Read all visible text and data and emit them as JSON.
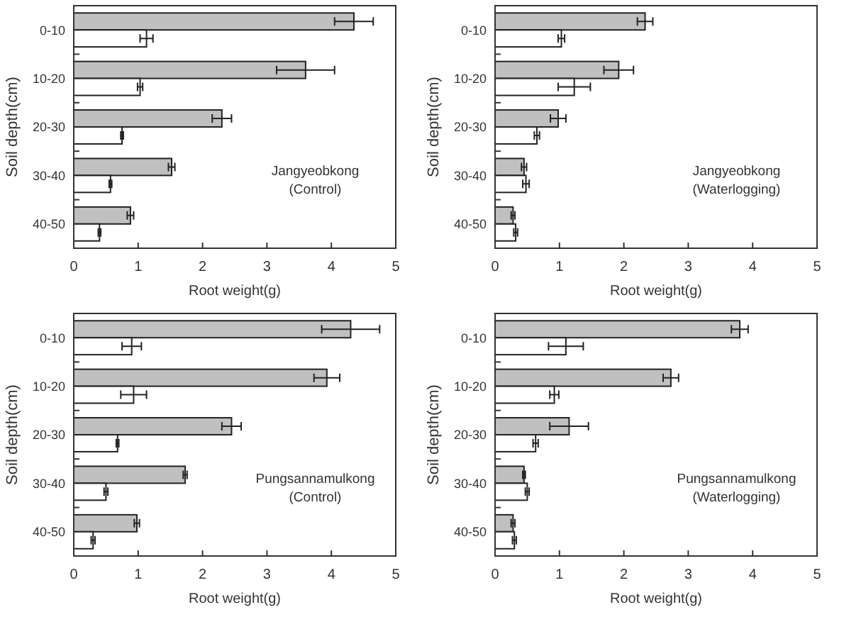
{
  "chart_data": [
    {
      "type": "bar",
      "orientation": "horizontal",
      "categories": [
        "0-10",
        "10-20",
        "20-30",
        "30-40",
        "40-50"
      ],
      "xlabel": "Root weight(g)",
      "ylabel": "Soil depth(cm)",
      "xlim": [
        0,
        5
      ],
      "xticks": [
        0,
        1,
        2,
        3,
        4,
        5
      ],
      "annotations": [
        "Jangyeobkong",
        "(Control)"
      ],
      "series": [
        {
          "color": "#c0c0c0",
          "values": [
            4.35,
            3.6,
            2.3,
            1.52,
            0.88
          ],
          "errors": [
            0.3,
            0.45,
            0.15,
            0.05,
            0.05
          ]
        },
        {
          "color": "#ffffff",
          "values": [
            1.13,
            1.03,
            0.75,
            0.57,
            0.4
          ],
          "errors": [
            0.1,
            0.04,
            0.02,
            0.02,
            0.02
          ]
        }
      ]
    },
    {
      "type": "bar",
      "orientation": "horizontal",
      "categories": [
        "0-10",
        "10-20",
        "20-30",
        "30-40",
        "40-50"
      ],
      "xlabel": "Root weight(g)",
      "ylabel": "Soil depth(cm)",
      "xlim": [
        0,
        5
      ],
      "xticks": [
        0,
        1,
        2,
        3,
        4,
        5
      ],
      "annotations": [
        "Jangyeobkong",
        "(Waterlogging)"
      ],
      "series": [
        {
          "color": "#c0c0c0",
          "values": [
            2.33,
            1.92,
            0.98,
            0.45,
            0.28
          ],
          "errors": [
            0.12,
            0.23,
            0.12,
            0.04,
            0.03
          ]
        },
        {
          "color": "#ffffff",
          "values": [
            1.03,
            1.23,
            0.65,
            0.48,
            0.32
          ],
          "errors": [
            0.05,
            0.25,
            0.04,
            0.05,
            0.03
          ]
        }
      ]
    },
    {
      "type": "bar",
      "orientation": "horizontal",
      "categories": [
        "0-10",
        "10-20",
        "20-30",
        "30-40",
        "40-50"
      ],
      "xlabel": "Root weight(g)",
      "ylabel": "Soil depth(cm)",
      "xlim": [
        0,
        5
      ],
      "xticks": [
        0,
        1,
        2,
        3,
        4,
        5
      ],
      "annotations": [
        "Pungsannamulkong",
        "(Control)"
      ],
      "series": [
        {
          "color": "#c0c0c0",
          "values": [
            4.3,
            3.93,
            2.45,
            1.73,
            0.98
          ],
          "errors": [
            0.45,
            0.2,
            0.15,
            0.03,
            0.04
          ]
        },
        {
          "color": "#ffffff",
          "values": [
            0.9,
            0.93,
            0.68,
            0.5,
            0.3
          ],
          "errors": [
            0.15,
            0.2,
            0.02,
            0.03,
            0.03
          ]
        }
      ]
    },
    {
      "type": "bar",
      "orientation": "horizontal",
      "categories": [
        "0-10",
        "10-20",
        "20-30",
        "30-40",
        "40-50"
      ],
      "xlabel": "Root weight(g)",
      "ylabel": "Soil depth(cm)",
      "xlim": [
        0,
        5
      ],
      "xticks": [
        0,
        1,
        2,
        3,
        4,
        5
      ],
      "annotations": [
        "Pungsannamulkong",
        "(Waterlogging)"
      ],
      "series": [
        {
          "color": "#c0c0c0",
          "values": [
            3.8,
            2.73,
            1.15,
            0.45,
            0.28
          ],
          "errors": [
            0.13,
            0.12,
            0.3,
            0.02,
            0.03
          ]
        },
        {
          "color": "#ffffff",
          "values": [
            1.1,
            0.92,
            0.63,
            0.5,
            0.3
          ],
          "errors": [
            0.27,
            0.07,
            0.04,
            0.03,
            0.03
          ]
        }
      ]
    }
  ]
}
